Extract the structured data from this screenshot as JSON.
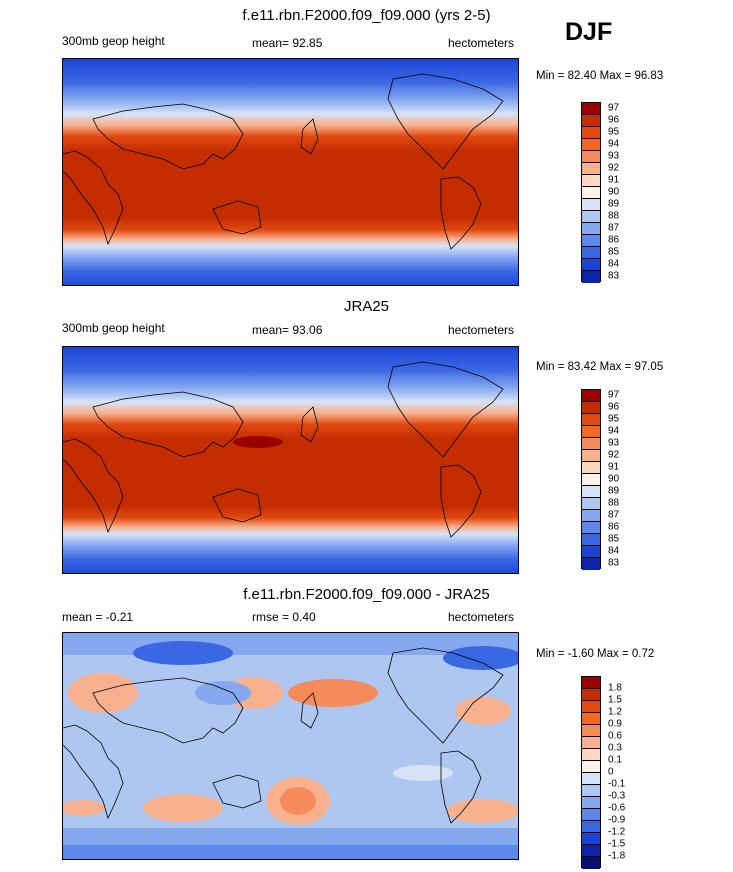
{
  "season": "DJF",
  "chart_data": [
    {
      "type": "heatmap",
      "title": "f.e11.rbn.F2000.f09_f09.000 (yrs 2-5)",
      "left_label": "300mb geop height",
      "center_label": "mean=  92.85",
      "right_label": "hectometers",
      "minmax": "Min =  82.40 Max =  96.83",
      "min": 82.4,
      "max": 96.83,
      "mean": 92.85,
      "levels": [
        "97",
        "96",
        "95",
        "94",
        "93",
        "92",
        "91",
        "90",
        "89",
        "88",
        "87",
        "86",
        "85",
        "84",
        "83"
      ],
      "colors": [
        "#990000",
        "#c42d00",
        "#e14a10",
        "#f4691e",
        "#f58b5a",
        "#f8b18f",
        "#fcd7c2",
        "#fbf2ea",
        "#d6e3f6",
        "#aec7f1",
        "#86a8ef",
        "#5e89ec",
        "#3a68e3",
        "#1a45d4",
        "#0d24a8"
      ]
    },
    {
      "type": "heatmap",
      "title": "JRA25",
      "left_label": "300mb geop height",
      "center_label": "mean=  93.06",
      "right_label": "hectometers",
      "minmax": "Min =  83.42 Max =  97.05",
      "min": 83.42,
      "max": 97.05,
      "mean": 93.06,
      "levels": [
        "97",
        "96",
        "95",
        "94",
        "93",
        "92",
        "91",
        "90",
        "89",
        "88",
        "87",
        "86",
        "85",
        "84",
        "83"
      ],
      "colors": [
        "#990000",
        "#c42d00",
        "#e14a10",
        "#f4691e",
        "#f58b5a",
        "#f8b18f",
        "#fcd7c2",
        "#fbf2ea",
        "#d6e3f6",
        "#aec7f1",
        "#86a8ef",
        "#5e89ec",
        "#3a68e3",
        "#1a45d4",
        "#0d24a8"
      ]
    },
    {
      "type": "heatmap",
      "title": "f.e11.rbn.F2000.f09_f09.000 - JRA25",
      "left_label": "mean =  -0.21",
      "center_label": "rmse =   0.40",
      "right_label": "hectometers",
      "minmax": "Min =  -1.60 Max =   0.72",
      "min": -1.6,
      "max": 0.72,
      "mean": -0.21,
      "rmse": 0.4,
      "levels": [
        "1.8",
        "1.5",
        "1.2",
        "0.9",
        "0.6",
        "0.3",
        "0.1",
        "0",
        "-0.1",
        "-0.3",
        "-0.6",
        "-0.9",
        "-1.2",
        "-1.5",
        "-1.8"
      ],
      "colors": [
        "#990000",
        "#c42d00",
        "#e14a10",
        "#f4691e",
        "#f58b5a",
        "#f8b18f",
        "#fcd7c2",
        "#fbf2ea",
        "#d6e3f6",
        "#aec7f1",
        "#86a8ef",
        "#5e89ec",
        "#3a68e3",
        "#1a45d4",
        "#0d24a8",
        "#051070"
      ]
    }
  ]
}
